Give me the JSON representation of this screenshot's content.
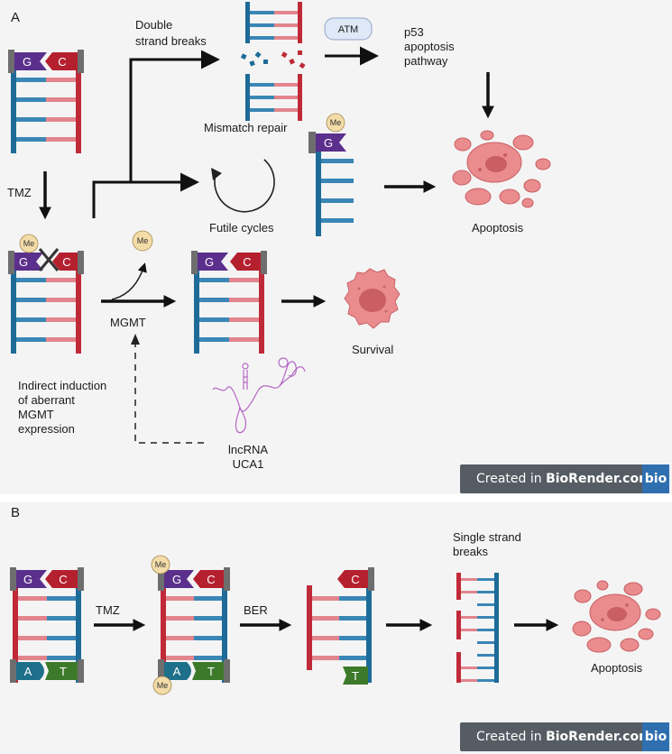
{
  "panel_a": {
    "letter": "A",
    "nucleotides": {
      "g": "G",
      "c": "C",
      "methyl": "Me"
    },
    "labels": {
      "tmz": "TMZ",
      "double_strand_1": "Double",
      "double_strand_2": "strand breaks",
      "atm": "ATM",
      "p53_1": "p53",
      "p53_2": "apoptosis",
      "p53_3": "pathway",
      "mismatch": "Mismatch repair",
      "futile": "Futile cycles",
      "apoptosis": "Apoptosis",
      "mgmt": "MGMT",
      "survival": "Survival",
      "indirect_1": "Indirect induction",
      "indirect_2": "of aberrant",
      "indirect_3": "MGMT",
      "indirect_4": "expression",
      "lnc_1": "lncRNA",
      "lnc_2": "UCA1"
    },
    "watermark": {
      "prefix": "Created in ",
      "brand": "BioRender.com",
      "logo": "bio"
    }
  },
  "panel_b": {
    "letter": "B",
    "nucleotides": {
      "g": "G",
      "c": "C",
      "a": "A",
      "t": "T",
      "methyl": "Me"
    },
    "labels": {
      "tmz": "TMZ",
      "ber": "BER",
      "single_1": "Single strand",
      "single_2": "breaks",
      "apoptosis": "Apoptosis"
    },
    "watermark": {
      "prefix": "Created in ",
      "brand": "BioRender.com",
      "logo": "bio"
    }
  },
  "colors": {
    "blue": "#1e6b98",
    "red": "#c02a38",
    "blue_light": "#3a86b5",
    "red_light": "#e2858d",
    "guanine": "#5b2f8c",
    "cytosine": "#b5202f",
    "adenine": "#1d6f8a",
    "thymine": "#3c7a2a",
    "cap": "#6e6e6e",
    "cell": "#ea8c8e",
    "cell_dark": "#c95e63",
    "methyl": "#f3dca8"
  }
}
